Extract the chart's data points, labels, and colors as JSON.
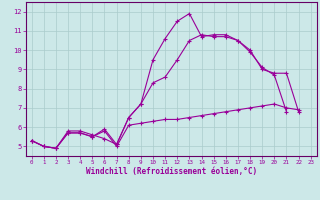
{
  "bg_color": "#cce8e8",
  "grid_color": "#aacccc",
  "line_color": "#990099",
  "spine_color": "#660066",
  "xlim": [
    -0.5,
    23.5
  ],
  "ylim": [
    4.5,
    12.5
  ],
  "yticks": [
    5,
    6,
    7,
    8,
    9,
    10,
    11,
    12
  ],
  "xticks": [
    0,
    1,
    2,
    3,
    4,
    5,
    6,
    7,
    8,
    9,
    10,
    11,
    12,
    13,
    14,
    15,
    16,
    17,
    18,
    19,
    20,
    21,
    22,
    23
  ],
  "xlabel": "Windchill (Refroidissement éolien,°C)",
  "series": [
    {
      "x": [
        0,
        1,
        2,
        3,
        4,
        5,
        6,
        7,
        8,
        9,
        10,
        11,
        12,
        13,
        14,
        15,
        16,
        17,
        18,
        19,
        20,
        21,
        22
      ],
      "y": [
        5.3,
        5.0,
        4.9,
        5.8,
        5.8,
        5.6,
        5.4,
        5.1,
        6.5,
        7.2,
        9.5,
        10.6,
        11.5,
        11.9,
        10.7,
        10.8,
        10.8,
        10.5,
        10.0,
        9.0,
        8.8,
        8.8,
        6.8
      ]
    },
    {
      "x": [
        0,
        1,
        2,
        3,
        4,
        5,
        6,
        7,
        8,
        9,
        10,
        11,
        12,
        13,
        14,
        15,
        16,
        17,
        18,
        19,
        20,
        21,
        22
      ],
      "y": [
        5.3,
        5.0,
        4.9,
        5.7,
        5.7,
        5.5,
        5.8,
        5.0,
        6.1,
        6.2,
        6.3,
        6.4,
        6.4,
        6.5,
        6.6,
        6.7,
        6.8,
        6.9,
        7.0,
        7.1,
        7.2,
        7.0,
        6.9
      ]
    },
    {
      "x": [
        0,
        1,
        2,
        3,
        4,
        5,
        6,
        7,
        8,
        9,
        10,
        11,
        12,
        13,
        14,
        15,
        16,
        17,
        18,
        19,
        20,
        21
      ],
      "y": [
        5.3,
        5.0,
        4.9,
        5.7,
        5.7,
        5.5,
        5.9,
        5.1,
        6.5,
        7.2,
        8.3,
        8.6,
        9.5,
        10.5,
        10.8,
        10.7,
        10.7,
        10.5,
        9.9,
        9.1,
        8.7,
        6.8
      ]
    }
  ]
}
